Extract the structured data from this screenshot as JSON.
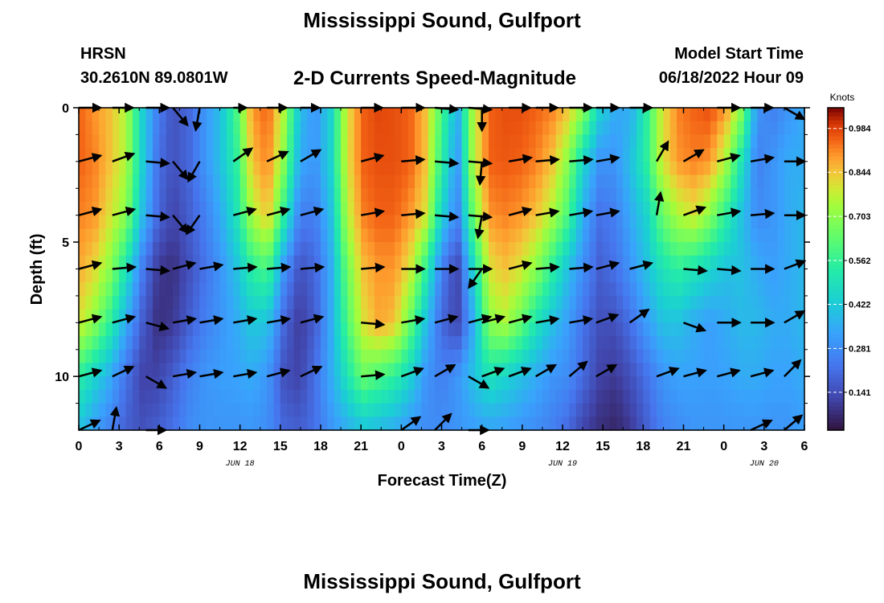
{
  "page": {
    "title": "Mississippi Sound, Gulfport",
    "title_repeat": "Mississippi Sound, Gulfport",
    "station": "HRSN",
    "coordinates": "30.2610N  89.0801W",
    "subtitle": "2-D Currents Speed-Magnitude",
    "model_start_label": "Model Start Time",
    "model_start_value": "06/18/2022 Hour 09"
  },
  "chart_data": {
    "type": "heatmap",
    "title": "Mississippi Sound, Gulfport",
    "subtitle": "2-D Currents Speed-Magnitude",
    "xlabel": "Forecast Time(Z)",
    "ylabel": "Depth (ft)",
    "colorbar_label": "Knots",
    "x_range_hours": [
      0,
      54
    ],
    "y_range_ft": [
      0,
      12
    ],
    "x_tick_labels": [
      "0",
      "3",
      "6",
      "9",
      "12",
      "15",
      "18",
      "21",
      "0",
      "3",
      "6",
      "9",
      "12",
      "15",
      "18",
      "21",
      "0",
      "3",
      "6"
    ],
    "x_date_labels": [
      {
        "label": "JUN 18",
        "hour": 12
      },
      {
        "label": "JUN 19",
        "hour": 36
      },
      {
        "label": "JUN 20",
        "hour": 51
      }
    ],
    "y_ticks": [
      0,
      5,
      10
    ],
    "y_tick_labels": [
      "0",
      "5",
      "10"
    ],
    "colorbar_ticks": [
      "0.984",
      "0.844",
      "0.703",
      "0.562",
      "0.422",
      "0.281",
      "0.141"
    ],
    "colorbar_tick_values": [
      0.984,
      0.844,
      0.703,
      0.562,
      0.422,
      0.281,
      0.141
    ],
    "colorbar_range": [
      0.02,
      1.05
    ],
    "depths_ft": [
      0,
      2,
      4,
      6,
      8,
      10,
      12
    ],
    "speed_kn_rows": [
      [
        0.95,
        0.9,
        0.85,
        0.75,
        0.45,
        0.25,
        0.15,
        0.2,
        0.3,
        0.4,
        0.6,
        0.9,
        0.95,
        0.75,
        0.4,
        0.3,
        0.45,
        0.8,
        0.95,
        0.98,
        0.97,
        0.95,
        0.85,
        0.6,
        0.35,
        0.75,
        0.95,
        0.97,
        0.97,
        0.95,
        0.92,
        0.85,
        0.7,
        0.45,
        0.35,
        0.35,
        0.55,
        0.8,
        0.92,
        0.95,
        0.97,
        0.9,
        0.7,
        0.3,
        0.25,
        0.3,
        0.35
      ],
      [
        0.95,
        0.92,
        0.85,
        0.75,
        0.45,
        0.22,
        0.15,
        0.2,
        0.3,
        0.4,
        0.55,
        0.85,
        0.92,
        0.7,
        0.35,
        0.3,
        0.45,
        0.8,
        0.95,
        0.97,
        0.97,
        0.95,
        0.85,
        0.55,
        0.3,
        0.75,
        0.95,
        0.96,
        0.95,
        0.92,
        0.85,
        0.7,
        0.45,
        0.3,
        0.3,
        0.4,
        0.55,
        0.8,
        0.9,
        0.92,
        0.9,
        0.75,
        0.5,
        0.25,
        0.3,
        0.35,
        0.35
      ],
      [
        0.92,
        0.9,
        0.8,
        0.7,
        0.4,
        0.2,
        0.12,
        0.18,
        0.25,
        0.35,
        0.5,
        0.75,
        0.85,
        0.55,
        0.25,
        0.25,
        0.4,
        0.75,
        0.92,
        0.95,
        0.95,
        0.9,
        0.8,
        0.45,
        0.25,
        0.65,
        0.9,
        0.92,
        0.9,
        0.85,
        0.75,
        0.6,
        0.35,
        0.22,
        0.25,
        0.35,
        0.45,
        0.65,
        0.75,
        0.8,
        0.7,
        0.55,
        0.4,
        0.28,
        0.3,
        0.35,
        0.38
      ],
      [
        0.88,
        0.82,
        0.7,
        0.5,
        0.25,
        0.1,
        0.08,
        0.15,
        0.22,
        0.3,
        0.4,
        0.55,
        0.6,
        0.3,
        0.15,
        0.2,
        0.35,
        0.65,
        0.85,
        0.9,
        0.9,
        0.8,
        0.55,
        0.25,
        0.12,
        0.45,
        0.8,
        0.85,
        0.8,
        0.7,
        0.55,
        0.4,
        0.28,
        0.18,
        0.22,
        0.3,
        0.4,
        0.5,
        0.55,
        0.5,
        0.45,
        0.4,
        0.4,
        0.35,
        0.32,
        0.35,
        0.38
      ],
      [
        0.8,
        0.7,
        0.55,
        0.35,
        0.18,
        0.08,
        0.1,
        0.18,
        0.25,
        0.3,
        0.35,
        0.42,
        0.4,
        0.2,
        0.1,
        0.18,
        0.35,
        0.6,
        0.8,
        0.88,
        0.85,
        0.65,
        0.4,
        0.2,
        0.12,
        0.35,
        0.7,
        0.75,
        0.65,
        0.5,
        0.4,
        0.32,
        0.22,
        0.15,
        0.15,
        0.22,
        0.32,
        0.4,
        0.4,
        0.35,
        0.32,
        0.35,
        0.38,
        0.38,
        0.35,
        0.35,
        0.38
      ],
      [
        0.55,
        0.45,
        0.35,
        0.22,
        0.12,
        0.12,
        0.18,
        0.25,
        0.3,
        0.32,
        0.33,
        0.35,
        0.3,
        0.15,
        0.12,
        0.22,
        0.35,
        0.5,
        0.65,
        0.6,
        0.55,
        0.45,
        0.3,
        0.25,
        0.3,
        0.4,
        0.5,
        0.45,
        0.4,
        0.35,
        0.3,
        0.28,
        0.2,
        0.12,
        0.1,
        0.15,
        0.22,
        0.3,
        0.33,
        0.33,
        0.32,
        0.33,
        0.35,
        0.35,
        0.33,
        0.33,
        0.35
      ],
      [
        0.4,
        0.32,
        0.25,
        0.18,
        0.15,
        0.18,
        0.22,
        0.28,
        0.3,
        0.3,
        0.3,
        0.3,
        0.28,
        0.2,
        0.18,
        0.22,
        0.3,
        0.35,
        0.4,
        0.38,
        0.35,
        0.3,
        0.28,
        0.28,
        0.3,
        0.32,
        0.33,
        0.32,
        0.3,
        0.28,
        0.25,
        0.2,
        0.12,
        0.08,
        0.06,
        0.1,
        0.18,
        0.25,
        0.28,
        0.3,
        0.3,
        0.3,
        0.3,
        0.3,
        0.3,
        0.3,
        0.32
      ]
    ],
    "arrow_rows_depth_ft": [
      0,
      2,
      4,
      6,
      8,
      10,
      12
    ],
    "arrow_times_h": [
      0,
      2.5,
      5,
      7,
      9,
      11.5,
      14,
      16.5,
      18.5,
      21,
      24,
      26.5,
      29,
      30,
      32,
      34,
      36.5,
      38.5,
      41,
      43,
      45,
      47.5,
      50,
      52.5
    ],
    "arrow_angles_deg": [
      [
        -15,
        -25,
        -5,
        50,
        100,
        -55,
        -30,
        -35,
        null,
        -20,
        0,
        5,
        5,
        90,
        -20,
        -15,
        -10,
        -10,
        -15,
        null,
        null,
        -10,
        -15,
        30
      ],
      [
        -15,
        -20,
        5,
        50,
        120,
        -35,
        -25,
        -30,
        null,
        -15,
        -5,
        5,
        5,
        95,
        -10,
        -5,
        -5,
        -10,
        null,
        -60,
        -30,
        -15,
        -10,
        0
      ],
      [
        -15,
        -15,
        5,
        50,
        125,
        -15,
        -15,
        -15,
        null,
        -10,
        -5,
        5,
        5,
        100,
        -15,
        -10,
        -10,
        -10,
        null,
        -80,
        -20,
        -10,
        -5,
        0
      ],
      [
        -15,
        -5,
        5,
        -15,
        -10,
        -5,
        -5,
        -5,
        null,
        -5,
        0,
        0,
        0,
        125,
        -15,
        -5,
        -5,
        -15,
        -15,
        null,
        5,
        5,
        0,
        -20
      ],
      [
        -15,
        -15,
        15,
        -10,
        -10,
        -10,
        -10,
        -15,
        null,
        5,
        -10,
        -15,
        -15,
        -15,
        -15,
        -10,
        -10,
        -20,
        -35,
        null,
        20,
        0,
        0,
        -30
      ],
      [
        -15,
        -25,
        30,
        -10,
        -10,
        -10,
        -15,
        -25,
        null,
        -5,
        -20,
        -30,
        30,
        -20,
        -20,
        -30,
        -40,
        -30,
        null,
        -20,
        -15,
        -15,
        -15,
        -45
      ],
      [
        -25,
        -80,
        30,
        null,
        null,
        null,
        null,
        null,
        null,
        null,
        -35,
        -45,
        30,
        null,
        null,
        null,
        null,
        null,
        null,
        null,
        null,
        null,
        -25,
        -40
      ]
    ]
  }
}
